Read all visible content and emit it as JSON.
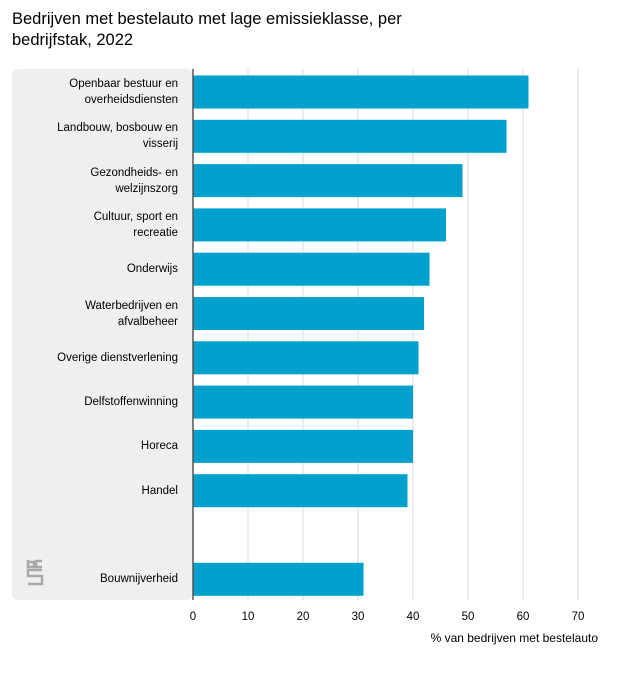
{
  "chart_data": {
    "type": "bar",
    "orientation": "horizontal",
    "title": "Bedrijven met bestelauto met lage emissieklasse, per bedrijfstak, 2022",
    "title_lines": [
      "Bedrijven met bestelauto met lage emissieklasse, per",
      "bedrijfstak, 2022"
    ],
    "xlabel": "% van bedrijven met bestelauto",
    "ylabel": "",
    "xlim": [
      0,
      70
    ],
    "xticks": [
      0,
      10,
      20,
      30,
      40,
      50,
      60,
      70
    ],
    "grid": true,
    "bar_color": "#00a1cd",
    "categories": [
      "Openbaar bestuur en\noverheidsdiensten",
      "Landbouw, bosbouw en\nvisserij",
      "Gezondheids- en\nwelzijnszorg",
      "Cultuur, sport en\nrecreatie",
      "Onderwijs",
      "Waterbedrijven en\nafvalbeheer",
      "Overige dienstverlening",
      "Delfstoffenwinning",
      "Horeca",
      "Handel",
      "",
      "Bouwnijverheid"
    ],
    "values": [
      61,
      57,
      49,
      46,
      43,
      42,
      41,
      40,
      40,
      39,
      null,
      31
    ]
  },
  "branding": {
    "logo_icon": "cbs-logo-icon",
    "logo_color": "#a8a8a8"
  }
}
